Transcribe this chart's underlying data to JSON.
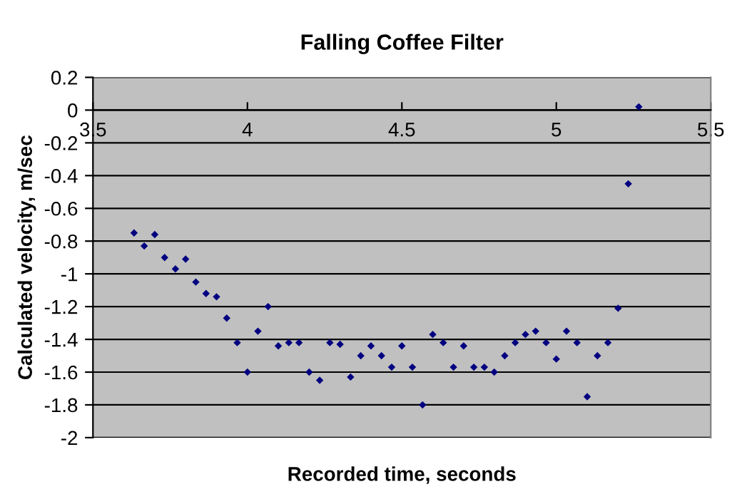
{
  "chart_data": {
    "type": "scatter",
    "title": "Falling Coffee Filter",
    "xlabel": "Recorded time, seconds",
    "ylabel": "Calculated velocity, m/sec",
    "series": [
      {
        "color": "#000080",
        "x": [
          3.633,
          3.666,
          3.7,
          3.732,
          3.767,
          3.8,
          3.833,
          3.866,
          3.9,
          3.933,
          3.967,
          4.0,
          4.034,
          4.067,
          4.1,
          4.134,
          4.167,
          4.2,
          4.234,
          4.267,
          4.3,
          4.334,
          4.367,
          4.4,
          4.434,
          4.467,
          4.5,
          4.534,
          4.567,
          4.6,
          4.634,
          4.667,
          4.7,
          4.733,
          4.767,
          4.799,
          4.833,
          4.867,
          4.9,
          4.933,
          4.967,
          5.0,
          5.033,
          5.067,
          5.1,
          5.133,
          5.167,
          5.2,
          5.233,
          5.267
        ],
        "values": [
          -0.75,
          -0.83,
          -0.76,
          -0.9,
          -0.97,
          -0.91,
          -1.05,
          -1.12,
          -1.14,
          -1.27,
          -1.42,
          -1.6,
          -1.35,
          -1.2,
          -1.44,
          -1.42,
          -1.42,
          -1.6,
          -1.65,
          -1.42,
          -1.43,
          -1.63,
          -1.5,
          -1.44,
          -1.5,
          -1.57,
          -1.44,
          -1.57,
          -1.8,
          -1.37,
          -1.42,
          -1.57,
          -1.44,
          -1.57,
          -1.57,
          -1.6,
          -1.5,
          -1.42,
          -1.37,
          -1.35,
          -1.42,
          -1.52,
          -1.35,
          -1.42,
          -1.75,
          -1.5,
          -1.42,
          -1.21,
          -0.45,
          0.02
        ]
      }
    ],
    "xlim": [
      3.5,
      5.5
    ],
    "xticks": [
      3.5,
      4,
      4.5,
      5,
      5.5
    ],
    "ylim": [
      -2,
      0.2
    ],
    "yticks": [
      0.2,
      0,
      -0.2,
      -0.4,
      -0.6,
      -0.8,
      -1,
      -1.2,
      -1.4,
      -1.6,
      -1.8,
      -2
    ],
    "grid": "y",
    "marker": "diamond"
  }
}
